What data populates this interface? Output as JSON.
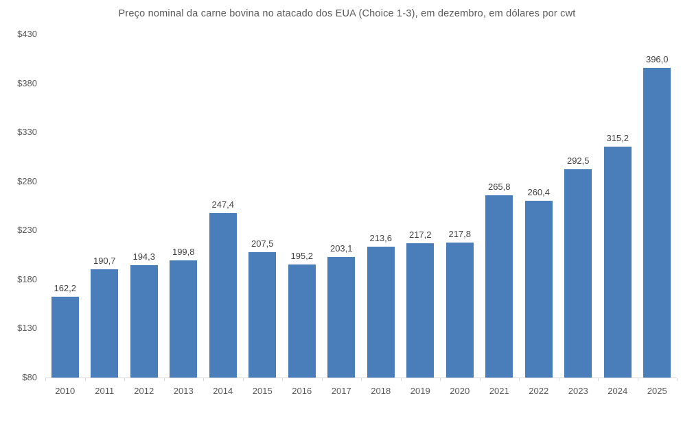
{
  "chart_data": {
    "type": "bar",
    "title": "Preço nominal da carne bovina no atacado dos EUA (Choice 1-3), em dezembro, em dólares por cwt",
    "categories": [
      "2010",
      "2011",
      "2012",
      "2013",
      "2014",
      "2015",
      "2016",
      "2017",
      "2018",
      "2019",
      "2020",
      "2021",
      "2022",
      "2023",
      "2024",
      "2025"
    ],
    "values": [
      162.2,
      190.7,
      194.3,
      199.8,
      247.4,
      207.5,
      195.2,
      203.1,
      213.6,
      217.2,
      217.8,
      265.8,
      260.4,
      292.5,
      315.2,
      396.0
    ],
    "value_labels": [
      "162,2",
      "190,7",
      "194,3",
      "199,8",
      "247,4",
      "207,5",
      "195,2",
      "203,1",
      "213,6",
      "217,2",
      "217,8",
      "265,8",
      "260,4",
      "292,5",
      "315,2",
      "396,0"
    ],
    "xlabel": "",
    "ylabel": "",
    "ylim": [
      80,
      430
    ],
    "y_tick_step": 50,
    "y_tick_labels": [
      "$430",
      "$380",
      "$330",
      "$280",
      "$230",
      "$180",
      "$130",
      "$80"
    ],
    "grid": false,
    "legend_position": "none",
    "colors": {
      "bar": "#4a7ebb",
      "title_text": "#595959",
      "axis_text": "#595959",
      "data_label_text": "#404040",
      "axis_line": "#d6d6d6",
      "background": "#ffffff"
    }
  }
}
